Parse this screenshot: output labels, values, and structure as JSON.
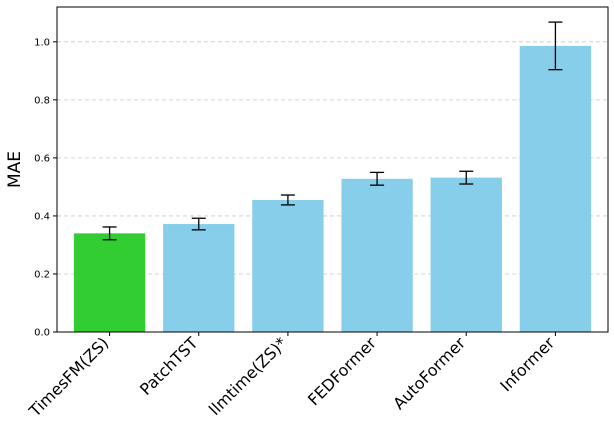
{
  "chart_data": {
    "type": "bar",
    "title": "",
    "xlabel": "",
    "ylabel": "MAE",
    "ylim": [
      0,
      1.12
    ],
    "yticks": [
      "0.0",
      "0.2",
      "0.4",
      "0.6",
      "0.8",
      "1.0"
    ],
    "grid": "horizontal dashed",
    "categories": [
      "TimesFM(ZS)",
      "PatchTST",
      "llmtime(ZS)*",
      "FEDFormer",
      "AutoFormer",
      "Informer"
    ],
    "values": [
      0.34,
      0.372,
      0.455,
      0.528,
      0.532,
      0.986
    ],
    "errors": [
      0.022,
      0.02,
      0.017,
      0.022,
      0.022,
      0.082
    ],
    "bar_colors": [
      "#32cd32",
      "#87ceeb",
      "#87ceeb",
      "#87ceeb",
      "#87ceeb",
      "#87ceeb"
    ]
  }
}
